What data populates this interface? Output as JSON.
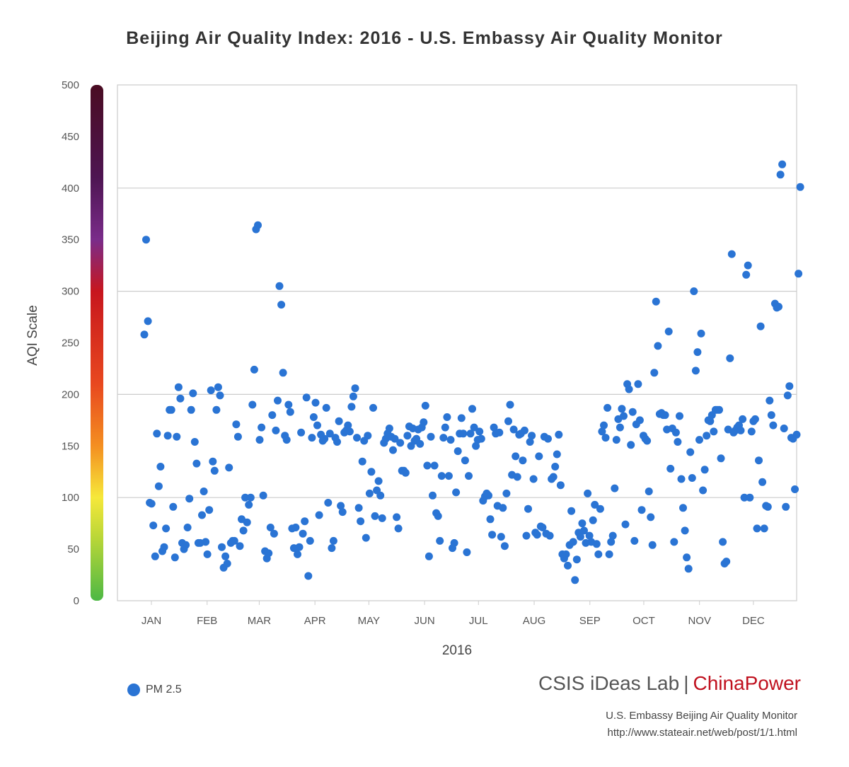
{
  "title": "Beijing Air Quality Index: 2016 - U.S. Embassy Air Quality Monitor",
  "brand": {
    "left": "CSIS iDeas Lab",
    "separator": "|",
    "right": "ChinaPower",
    "right_color": "#c0111f"
  },
  "source": {
    "line1": "U.S. Embassy Beijing Air Quality Monitor",
    "line2": "http://www.stateair.net/web/post/1/1.html"
  },
  "legend": {
    "label": "PM 2.5",
    "color": "#2a74d4"
  },
  "chart_data": {
    "type": "scatter",
    "title": "Beijing Air Quality Index: 2016 - U.S. Embassy Air Quality Monitor",
    "xlabel": "2016",
    "ylabel": "AQI Scale",
    "ylim": [
      0,
      500
    ],
    "yticks": [
      0,
      50,
      100,
      150,
      200,
      250,
      300,
      350,
      400,
      450,
      500
    ],
    "xlim_day_of_year": [
      1,
      366
    ],
    "month_ticks": [
      {
        "label": "JAN",
        "day": 1
      },
      {
        "label": "FEB",
        "day": 32
      },
      {
        "label": "MAR",
        "day": 61
      },
      {
        "label": "APR",
        "day": 92
      },
      {
        "label": "MAY",
        "day": 122
      },
      {
        "label": "JUN",
        "day": 153
      },
      {
        "label": "JUL",
        "day": 183
      },
      {
        "label": "AUG",
        "day": 214
      },
      {
        "label": "SEP",
        "day": 245
      },
      {
        "label": "OCT",
        "day": 275
      },
      {
        "label": "NOV",
        "day": 306
      },
      {
        "label": "DEC",
        "day": 336
      }
    ],
    "grid": true,
    "color_scale": [
      "#4db844",
      "#f6e83a",
      "#f48f21",
      "#c7161e",
      "#7a2c8a",
      "#4a0c22"
    ],
    "series": [
      {
        "name": "PM 2.5",
        "color": "#2a74d4",
        "values": [
          258,
          350,
          271,
          95,
          94,
          73,
          43,
          162,
          111,
          130,
          48,
          52,
          70,
          160,
          185,
          185,
          91,
          42,
          159,
          207,
          196,
          56,
          50,
          54,
          71,
          99,
          185,
          201,
          154,
          133,
          56,
          56,
          83,
          106,
          57,
          45,
          88,
          204,
          135,
          126,
          185,
          207,
          199,
          52,
          32,
          43,
          36,
          129,
          56,
          58,
          58,
          171,
          159,
          53,
          79,
          68,
          100,
          76,
          93,
          100,
          190,
          224,
          360,
          364,
          156,
          168,
          102,
          48,
          41,
          46,
          71,
          180,
          65,
          165,
          194,
          305,
          287,
          221,
          160,
          156,
          190,
          183,
          70,
          51,
          71,
          45,
          52,
          163,
          65,
          77,
          197,
          24,
          58,
          158,
          178,
          192,
          170,
          83,
          161,
          155,
          157,
          187,
          95,
          162,
          51,
          58,
          158,
          154,
          174,
          92,
          86,
          163,
          165,
          170,
          164,
          188,
          198,
          206,
          158,
          90,
          77,
          135,
          155,
          61,
          160,
          104,
          125,
          187,
          82,
          107,
          116,
          102,
          80,
          153,
          157,
          162,
          167,
          159,
          146,
          157,
          81,
          70,
          153,
          126,
          126,
          124,
          160,
          169,
          150,
          167,
          155,
          157,
          166,
          152,
          168,
          173,
          189,
          131,
          43,
          159,
          102,
          131,
          85,
          82,
          58,
          121,
          158,
          168,
          178,
          121,
          156,
          51,
          56,
          105,
          145,
          162,
          177,
          162,
          136,
          47,
          121,
          162,
          186,
          168,
          150,
          156,
          164,
          157,
          97,
          101,
          104,
          102,
          79,
          64,
          168,
          162,
          92,
          163,
          62,
          90,
          53,
          104,
          174,
          190,
          122,
          166,
          140,
          120,
          161,
          162,
          136,
          165,
          63,
          89,
          154,
          160,
          118,
          66,
          64,
          140,
          72,
          71,
          159,
          65,
          157,
          63,
          118,
          120,
          130,
          142,
          161,
          112,
          45,
          41,
          45,
          34,
          54,
          87,
          57,
          20,
          40,
          66,
          62,
          75,
          68,
          56,
          104,
          63,
          57,
          78,
          93,
          55,
          45,
          89,
          164,
          170,
          158,
          187,
          45,
          57,
          63,
          109,
          156,
          176,
          168,
          186,
          179,
          74,
          210,
          205,
          151,
          183,
          58,
          171,
          210,
          175,
          88,
          160,
          157,
          155,
          106,
          81,
          54,
          221,
          290,
          247,
          181,
          182,
          180,
          180,
          166,
          261,
          128,
          167,
          57,
          163,
          154,
          179,
          118,
          90,
          68,
          42,
          31,
          144,
          119,
          300,
          223,
          241,
          156,
          259,
          107,
          127,
          160,
          175,
          174,
          180,
          164,
          185,
          185,
          185,
          138,
          57,
          36,
          38,
          166,
          235,
          336,
          163,
          165,
          168,
          170,
          165,
          176,
          100,
          316,
          325,
          100,
          164,
          174,
          176,
          70,
          136,
          266,
          115,
          70,
          92,
          91,
          194,
          180,
          170,
          288,
          284,
          285,
          413,
          423,
          167,
          91,
          199,
          208,
          158,
          157,
          108,
          161,
          317,
          401
        ]
      }
    ]
  }
}
